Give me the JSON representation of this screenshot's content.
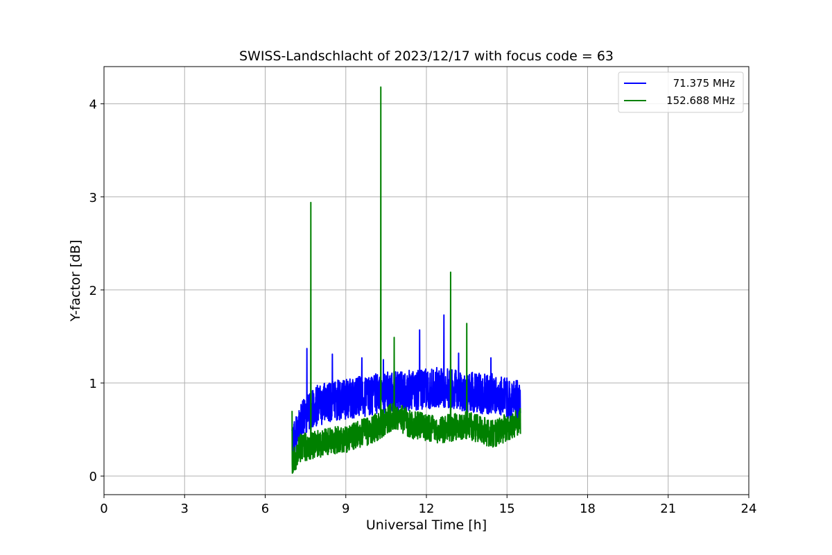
{
  "chart_data": {
    "type": "line",
    "title": "SWISS-Landschlacht of 2023/12/17 with focus code = 63",
    "xlabel": "Universal Time [h]",
    "ylabel": "Y-factor [dB]",
    "xlim": [
      0,
      24
    ],
    "ylim": [
      -0.2,
      4.4
    ],
    "xticks": [
      0,
      3,
      6,
      9,
      12,
      15,
      18,
      21,
      24
    ],
    "yticks": [
      0,
      1,
      2,
      3,
      4
    ],
    "grid": true,
    "legend_position": "top-right",
    "series": [
      {
        "name": "71.375 MHz",
        "color": "#0000ff",
        "x_range": [
          7.0,
          15.5
        ],
        "baseline": [
          [
            7.0,
            0.3
          ],
          [
            7.3,
            0.55
          ],
          [
            7.8,
            0.75
          ],
          [
            8.5,
            0.8
          ],
          [
            9.5,
            0.85
          ],
          [
            10.5,
            0.9
          ],
          [
            11.5,
            0.92
          ],
          [
            12.5,
            0.95
          ],
          [
            13.5,
            0.9
          ],
          [
            14.5,
            0.88
          ],
          [
            15.5,
            0.8
          ]
        ],
        "noise_amplitude": 0.22,
        "spikes": [
          [
            7.55,
            1.37
          ],
          [
            8.5,
            1.31
          ],
          [
            9.6,
            1.27
          ],
          [
            10.4,
            1.25
          ],
          [
            11.75,
            1.57
          ],
          [
            12.65,
            1.73
          ],
          [
            13.2,
            1.32
          ],
          [
            14.4,
            1.27
          ]
        ]
      },
      {
        "name": "152.688 MHz",
        "color": "#008000",
        "x_range": [
          7.0,
          15.5
        ],
        "baseline": [
          [
            7.0,
            0.15
          ],
          [
            7.3,
            0.3
          ],
          [
            8.0,
            0.35
          ],
          [
            9.0,
            0.4
          ],
          [
            10.0,
            0.5
          ],
          [
            10.8,
            0.65
          ],
          [
            11.5,
            0.55
          ],
          [
            12.5,
            0.5
          ],
          [
            13.5,
            0.55
          ],
          [
            14.5,
            0.45
          ],
          [
            15.5,
            0.6
          ]
        ],
        "noise_amplitude": 0.15,
        "spikes": [
          [
            7.0,
            0.7
          ],
          [
            7.7,
            2.94
          ],
          [
            10.3,
            4.18
          ],
          [
            10.8,
            1.49
          ],
          [
            12.9,
            2.19
          ],
          [
            13.5,
            1.64
          ]
        ]
      }
    ]
  }
}
